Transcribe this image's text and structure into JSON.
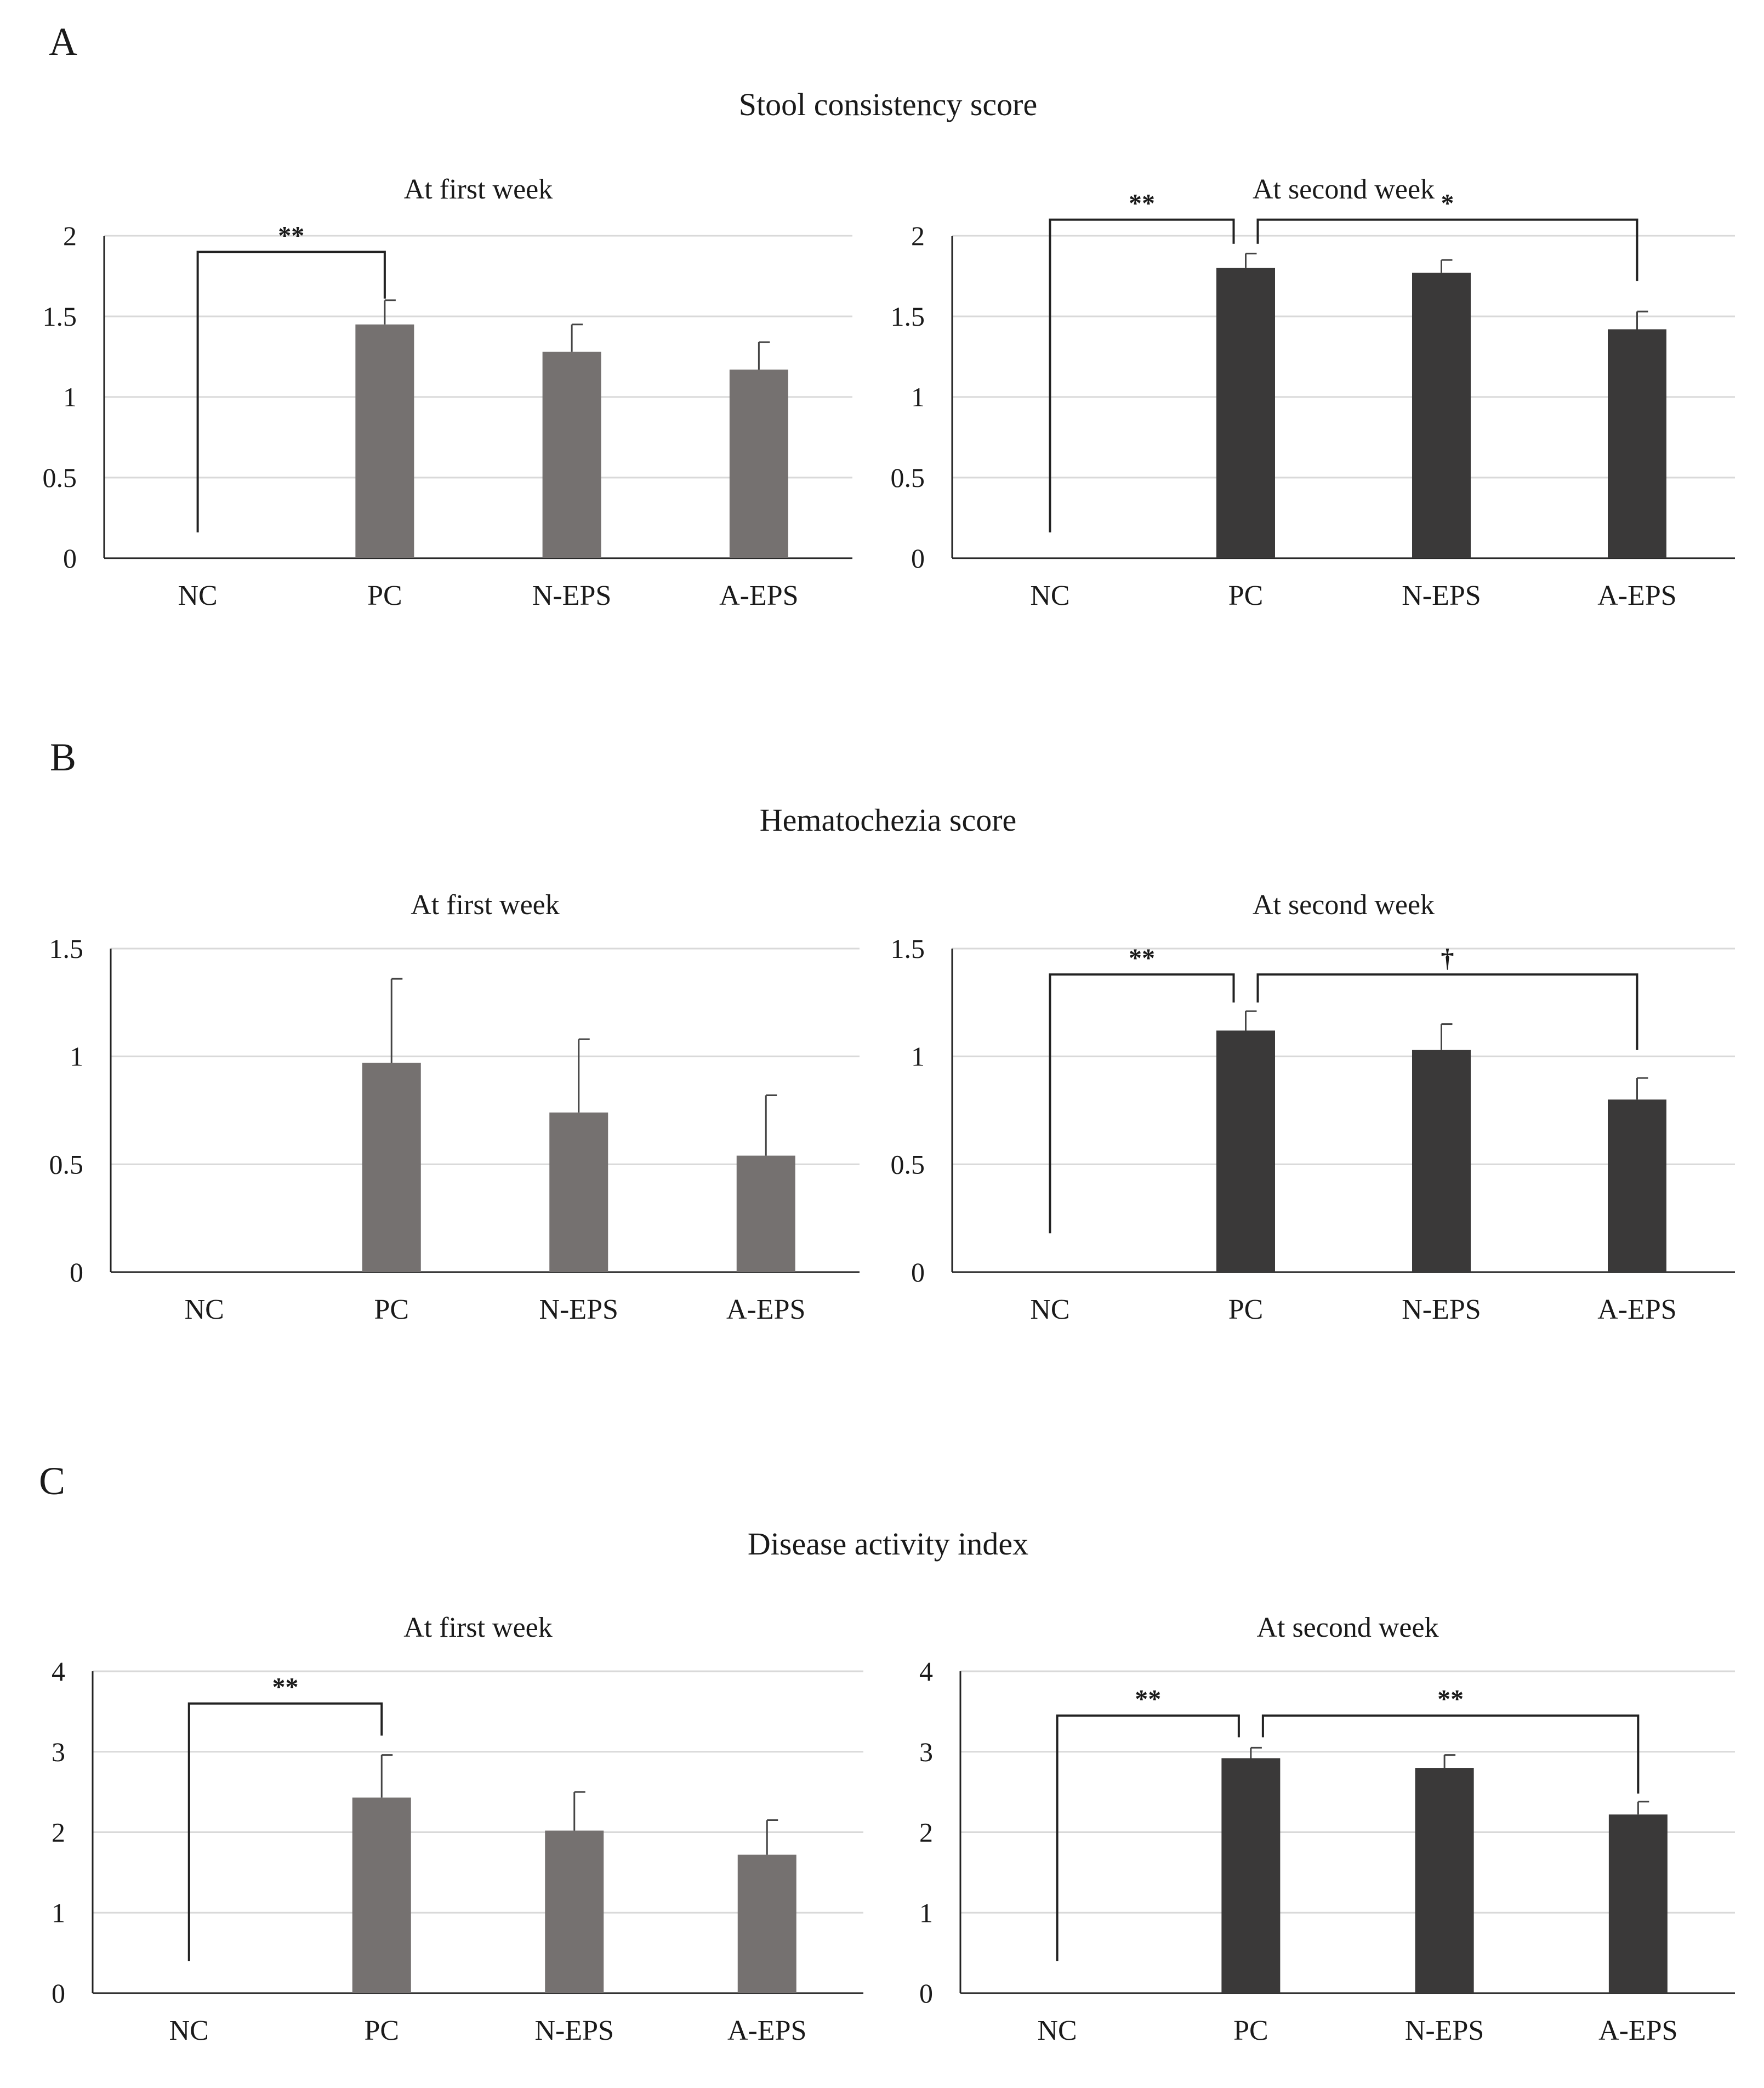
{
  "figure": {
    "panels": [
      {
        "letter": "A",
        "title": "Stool consistency score",
        "charts": [
          {
            "subtitle": "At first week",
            "ylim": [
              0,
              2
            ],
            "yticks": [
              0,
              0.5,
              1,
              1.5,
              2
            ],
            "ytick_labels": [
              "0",
              "0.5",
              "1",
              "1.5",
              "2"
            ],
            "categories": [
              "NC",
              "PC",
              "N-EPS",
              "A-EPS"
            ],
            "values": [
              0,
              1.45,
              1.28,
              1.17
            ],
            "errors": [
              0,
              0.15,
              0.17,
              0.17
            ],
            "bar_color": "#757170",
            "significance": [
              {
                "from": 0,
                "to": 1,
                "label": "**",
                "level": 1.9,
                "left_low": 0.16,
                "right_low": 1.61
              }
            ]
          },
          {
            "subtitle": "At second week",
            "ylim": [
              0,
              2
            ],
            "yticks": [
              0,
              0.5,
              1,
              1.5,
              2
            ],
            "ytick_labels": [
              "0",
              "0.5",
              "1",
              "1.5",
              "2"
            ],
            "categories": [
              "NC",
              "PC",
              "N-EPS",
              "A-EPS"
            ],
            "values": [
              0,
              1.8,
              1.77,
              1.42
            ],
            "errors": [
              0,
              0.09,
              0.08,
              0.11
            ],
            "bar_color": "#3a3939",
            "significance": [
              {
                "from": 0,
                "to": 1,
                "label": "**",
                "level": 2.1,
                "left_low": 0.16,
                "right_low": 1.95
              },
              {
                "from": 1,
                "to": 3,
                "label": "*",
                "level": 2.1,
                "left_low": 1.95,
                "right_low": 1.72
              }
            ]
          }
        ]
      },
      {
        "letter": "B",
        "title": "Hematochezia score",
        "charts": [
          {
            "subtitle": "At first week",
            "ylim": [
              0,
              1.5
            ],
            "yticks": [
              0,
              0.5,
              1,
              1.5
            ],
            "ytick_labels": [
              "0",
              "0.5",
              "1",
              "1.5"
            ],
            "categories": [
              "NC",
              "PC",
              "N-EPS",
              "A-EPS"
            ],
            "values": [
              0,
              0.97,
              0.74,
              0.54
            ],
            "errors": [
              0,
              0.39,
              0.34,
              0.28
            ],
            "bar_color": "#757170",
            "significance": []
          },
          {
            "subtitle": "At second week",
            "ylim": [
              0,
              1.5
            ],
            "yticks": [
              0,
              0.5,
              1,
              1.5
            ],
            "ytick_labels": [
              "0",
              "0.5",
              "1",
              "1.5"
            ],
            "categories": [
              "NC",
              "PC",
              "N-EPS",
              "A-EPS"
            ],
            "values": [
              0,
              1.12,
              1.03,
              0.8
            ],
            "errors": [
              0,
              0.09,
              0.12,
              0.1
            ],
            "bar_color": "#3a3939",
            "significance": [
              {
                "from": 0,
                "to": 1,
                "label": "**",
                "level": 1.38,
                "left_low": 0.18,
                "right_low": 1.25
              },
              {
                "from": 1,
                "to": 3,
                "label": "†",
                "level": 1.38,
                "left_low": 1.25,
                "right_low": 1.03
              }
            ]
          }
        ]
      },
      {
        "letter": "C",
        "title": "Disease activity index",
        "charts": [
          {
            "subtitle": "At first week",
            "ylim": [
              0,
              4
            ],
            "yticks": [
              0,
              1,
              2,
              3,
              4
            ],
            "ytick_labels": [
              "0",
              "1",
              "2",
              "3",
              "4"
            ],
            "categories": [
              "NC",
              "PC",
              "N-EPS",
              "A-EPS"
            ],
            "values": [
              0,
              2.43,
              2.02,
              1.72
            ],
            "errors": [
              0,
              0.53,
              0.48,
              0.43
            ],
            "bar_color": "#757170",
            "significance": [
              {
                "from": 0,
                "to": 1,
                "label": "**",
                "level": 3.6,
                "left_low": 0.4,
                "right_low": 3.2
              }
            ]
          },
          {
            "subtitle": "At second week",
            "ylim": [
              0,
              4
            ],
            "yticks": [
              0,
              1,
              2,
              3,
              4
            ],
            "ytick_labels": [
              "0",
              "1",
              "2",
              "3",
              "4"
            ],
            "categories": [
              "NC",
              "PC",
              "N-EPS",
              "A-EPS"
            ],
            "values": [
              0,
              2.92,
              2.8,
              2.22
            ],
            "errors": [
              0,
              0.13,
              0.16,
              0.16
            ],
            "bar_color": "#3a3939",
            "significance": [
              {
                "from": 0,
                "to": 1,
                "label": "**",
                "level": 3.45,
                "left_low": 0.4,
                "right_low": 3.18
              },
              {
                "from": 1,
                "to": 3,
                "label": "**",
                "level": 3.45,
                "left_low": 3.18,
                "right_low": 2.48
              }
            ]
          }
        ]
      }
    ]
  },
  "chart_data": [
    {
      "type": "bar",
      "panel": "A",
      "title": "Stool consistency score",
      "subtitle": "At first week",
      "categories": [
        "NC",
        "PC",
        "N-EPS",
        "A-EPS"
      ],
      "values": [
        0,
        1.45,
        1.28,
        1.17
      ],
      "errors": [
        0,
        0.15,
        0.17,
        0.17
      ],
      "ylim": [
        0,
        2
      ],
      "xlabel": "",
      "ylabel": "",
      "grid": true,
      "significance": [
        "NC vs PC: **"
      ]
    },
    {
      "type": "bar",
      "panel": "A",
      "title": "Stool consistency score",
      "subtitle": "At second week",
      "categories": [
        "NC",
        "PC",
        "N-EPS",
        "A-EPS"
      ],
      "values": [
        0,
        1.8,
        1.77,
        1.42
      ],
      "errors": [
        0,
        0.09,
        0.08,
        0.11
      ],
      "ylim": [
        0,
        2
      ],
      "xlabel": "",
      "ylabel": "",
      "grid": true,
      "significance": [
        "NC vs PC: **",
        "PC vs A-EPS: *"
      ]
    },
    {
      "type": "bar",
      "panel": "B",
      "title": "Hematochezia score",
      "subtitle": "At first week",
      "categories": [
        "NC",
        "PC",
        "N-EPS",
        "A-EPS"
      ],
      "values": [
        0,
        0.97,
        0.74,
        0.54
      ],
      "errors": [
        0,
        0.39,
        0.34,
        0.28
      ],
      "ylim": [
        0,
        1.5
      ],
      "xlabel": "",
      "ylabel": "",
      "grid": true,
      "significance": []
    },
    {
      "type": "bar",
      "panel": "B",
      "title": "Hematochezia score",
      "subtitle": "At second week",
      "categories": [
        "NC",
        "PC",
        "N-EPS",
        "A-EPS"
      ],
      "values": [
        0,
        1.12,
        1.03,
        0.8
      ],
      "errors": [
        0,
        0.09,
        0.12,
        0.1
      ],
      "ylim": [
        0,
        1.5
      ],
      "xlabel": "",
      "ylabel": "",
      "grid": true,
      "significance": [
        "NC vs PC: **",
        "PC vs A-EPS: †"
      ]
    },
    {
      "type": "bar",
      "panel": "C",
      "title": "Disease activity index",
      "subtitle": "At first week",
      "categories": [
        "NC",
        "PC",
        "N-EPS",
        "A-EPS"
      ],
      "values": [
        0,
        2.43,
        2.02,
        1.72
      ],
      "errors": [
        0,
        0.53,
        0.48,
        0.43
      ],
      "ylim": [
        0,
        4
      ],
      "xlabel": "",
      "ylabel": "",
      "grid": true,
      "significance": [
        "NC vs PC: **"
      ]
    },
    {
      "type": "bar",
      "panel": "C",
      "title": "Disease activity index",
      "subtitle": "At second week",
      "categories": [
        "NC",
        "PC",
        "N-EPS",
        "A-EPS"
      ],
      "values": [
        0,
        2.92,
        2.8,
        2.22
      ],
      "errors": [
        0,
        0.13,
        0.16,
        0.16
      ],
      "ylim": [
        0,
        4
      ],
      "xlabel": "",
      "ylabel": "",
      "grid": true,
      "significance": [
        "NC vs PC: **",
        "PC vs A-EPS: **"
      ]
    }
  ]
}
